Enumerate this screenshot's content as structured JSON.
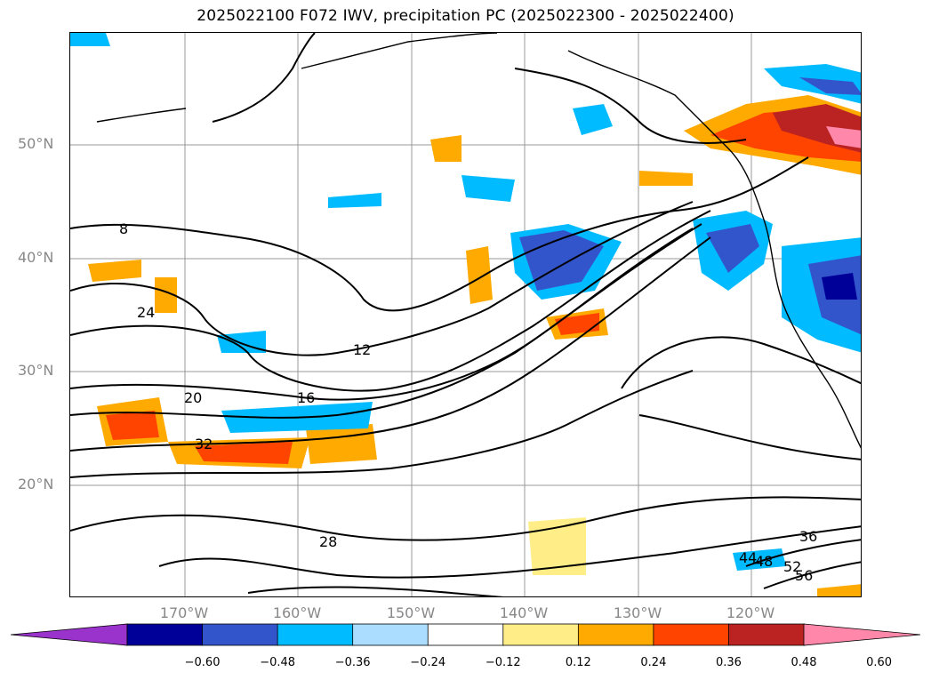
{
  "title": "2025022100 F072 IWV, precipitation PC (2025022300 - 2025022400)",
  "lat_labels": [
    "50°N",
    "40°N",
    "30°N",
    "20°N"
  ],
  "lon_labels": [
    "170°W",
    "160°W",
    "150°W",
    "140°W",
    "130°W",
    "120°W"
  ],
  "colorbar": {
    "colors": [
      "#9933cc",
      "#000099",
      "#3355cc",
      "#00bbff",
      "#aaddff",
      "#ffffff",
      "#ffee88",
      "#ffaa00",
      "#ff4400",
      "#bb2222",
      "#ff88aa"
    ],
    "ticks": [
      "−0.60",
      "−0.48",
      "−0.36",
      "−0.24",
      "−0.12",
      "0.12",
      "0.24",
      "0.36",
      "0.48",
      "0.60"
    ]
  },
  "contour_labels": [
    "8",
    "12",
    "16",
    "20",
    "24",
    "28",
    "32",
    "36",
    "44",
    "48",
    "52",
    "56"
  ]
}
